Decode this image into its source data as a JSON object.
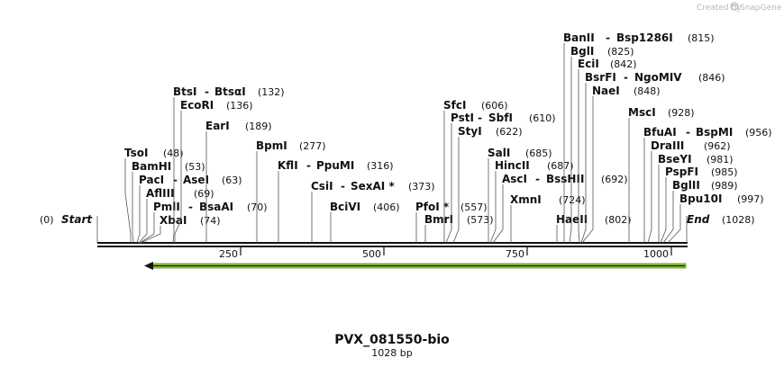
{
  "credit": {
    "prefix": "Created by",
    "brand": "SnapGene"
  },
  "sequence": {
    "name": "PVX_081550-bio",
    "length_label": "1028 bp",
    "length": 1028
  },
  "ends": {
    "start": {
      "label": "Start",
      "pos": "(0)"
    },
    "end": {
      "label": "End",
      "pos": "(1028)"
    }
  },
  "ruler_ticks": [
    "250",
    "500",
    "750",
    "1000"
  ],
  "feature": {
    "name": "",
    "start": 75,
    "end": 1028,
    "direction": "reverse",
    "color": "#8fce3c"
  },
  "sites": [
    {
      "names": [
        "TsoI"
      ],
      "pos": "(48)"
    },
    {
      "names": [
        "BamHI"
      ],
      "pos": "(53)"
    },
    {
      "names": [
        "PacI",
        "AseI"
      ],
      "pos": "(63)"
    },
    {
      "names": [
        "AflIII"
      ],
      "pos": "(69)"
    },
    {
      "names": [
        "PmlI",
        "BsaAI"
      ],
      "pos": "(70)"
    },
    {
      "names": [
        "XbaI"
      ],
      "pos": "(74)"
    },
    {
      "names": [
        "BtsI",
        "BtsαI"
      ],
      "pos": "(132)"
    },
    {
      "names": [
        "EcoRI"
      ],
      "pos": "(136)"
    },
    {
      "names": [
        "EarI"
      ],
      "pos": "(189)"
    },
    {
      "names": [
        "BpmI"
      ],
      "pos": "(277)"
    },
    {
      "names": [
        "KflI",
        "PpuMI"
      ],
      "pos": "(316)"
    },
    {
      "names": [
        "CsiI",
        "SexAI *"
      ],
      "pos": "(373)"
    },
    {
      "names": [
        "BciVI"
      ],
      "pos": "(406)"
    },
    {
      "names": [
        "PfoI *"
      ],
      "pos": "(557)"
    },
    {
      "names": [
        "BmrI"
      ],
      "pos": "(573)"
    },
    {
      "names": [
        "SfcI"
      ],
      "pos": "(606)"
    },
    {
      "names": [
        "PstI",
        "SbfI"
      ],
      "pos": "(610)"
    },
    {
      "names": [
        "StyI"
      ],
      "pos": "(622)"
    },
    {
      "names": [
        "SalI"
      ],
      "pos": "(685)"
    },
    {
      "names": [
        "HincII"
      ],
      "pos": "(687)"
    },
    {
      "names": [
        "AscI",
        "BssHII"
      ],
      "pos": "(692)"
    },
    {
      "names": [
        "XmnI"
      ],
      "pos": "(724)"
    },
    {
      "names": [
        "HaeII"
      ],
      "pos": "(802)"
    },
    {
      "names": [
        "BanII",
        "Bsp1286I"
      ],
      "pos": "(815)"
    },
    {
      "names": [
        "BglI"
      ],
      "pos": "(825)"
    },
    {
      "names": [
        "EciI"
      ],
      "pos": "(842)"
    },
    {
      "names": [
        "BsrFI",
        "NgoMIV"
      ],
      "pos": "(846)"
    },
    {
      "names": [
        "NaeI"
      ],
      "pos": "(848)"
    },
    {
      "names": [
        "MscI"
      ],
      "pos": "(928)"
    },
    {
      "names": [
        "BfuAI",
        "BspMI"
      ],
      "pos": "(956)"
    },
    {
      "names": [
        "DraIII"
      ],
      "pos": "(962)"
    },
    {
      "names": [
        "BseYI"
      ],
      "pos": "(981)"
    },
    {
      "names": [
        "PspFI"
      ],
      "pos": "(985)"
    },
    {
      "names": [
        "BglII"
      ],
      "pos": "(989)"
    },
    {
      "names": [
        "Bpu10I"
      ],
      "pos": "(997)"
    }
  ]
}
